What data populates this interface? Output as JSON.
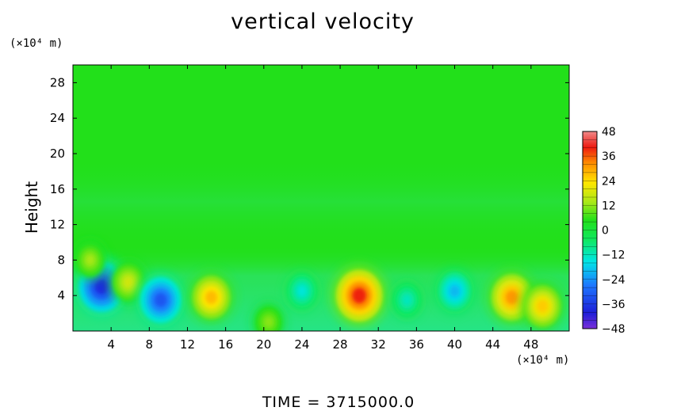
{
  "chart_data": {
    "type": "heatmap",
    "title": "vertical velocity",
    "ylabel": "Height",
    "x_unit": "(×10⁴ m)",
    "y_unit": "(×10⁴ m)",
    "footer": "TIME  =  3715000.0",
    "xlim": [
      0,
      52
    ],
    "ylim": [
      0,
      30
    ],
    "x_ticks": [
      4,
      8,
      12,
      16,
      20,
      24,
      28,
      32,
      36,
      40,
      44,
      48
    ],
    "y_ticks": [
      4,
      8,
      12,
      16,
      20,
      24,
      28
    ],
    "colorbar": {
      "min": -48,
      "max": 48,
      "ticks": [
        48,
        36,
        24,
        12,
        0,
        -12,
        -24,
        -36,
        -48
      ],
      "tick_labels": [
        "48",
        "36",
        "24",
        "12",
        "0",
        "−12",
        "−24",
        "−36",
        "−48"
      ]
    },
    "features": [
      {
        "x": 3.0,
        "y": 5.0,
        "value": -38
      },
      {
        "x": 5.8,
        "y": 5.5,
        "value": 18
      },
      {
        "x": 9.2,
        "y": 3.5,
        "value": -32
      },
      {
        "x": 14.5,
        "y": 3.8,
        "value": 28
      },
      {
        "x": 20.5,
        "y": 1.0,
        "value": 12
      },
      {
        "x": 24.0,
        "y": 4.5,
        "value": -14
      },
      {
        "x": 30.0,
        "y": 4.0,
        "value": 40
      },
      {
        "x": 35.0,
        "y": 3.5,
        "value": -12
      },
      {
        "x": 40.0,
        "y": 4.5,
        "value": -20
      },
      {
        "x": 46.0,
        "y": 3.8,
        "value": 32
      },
      {
        "x": 49.2,
        "y": 2.8,
        "value": 26
      },
      {
        "x": 1.8,
        "y": 8.0,
        "value": 14
      }
    ]
  }
}
